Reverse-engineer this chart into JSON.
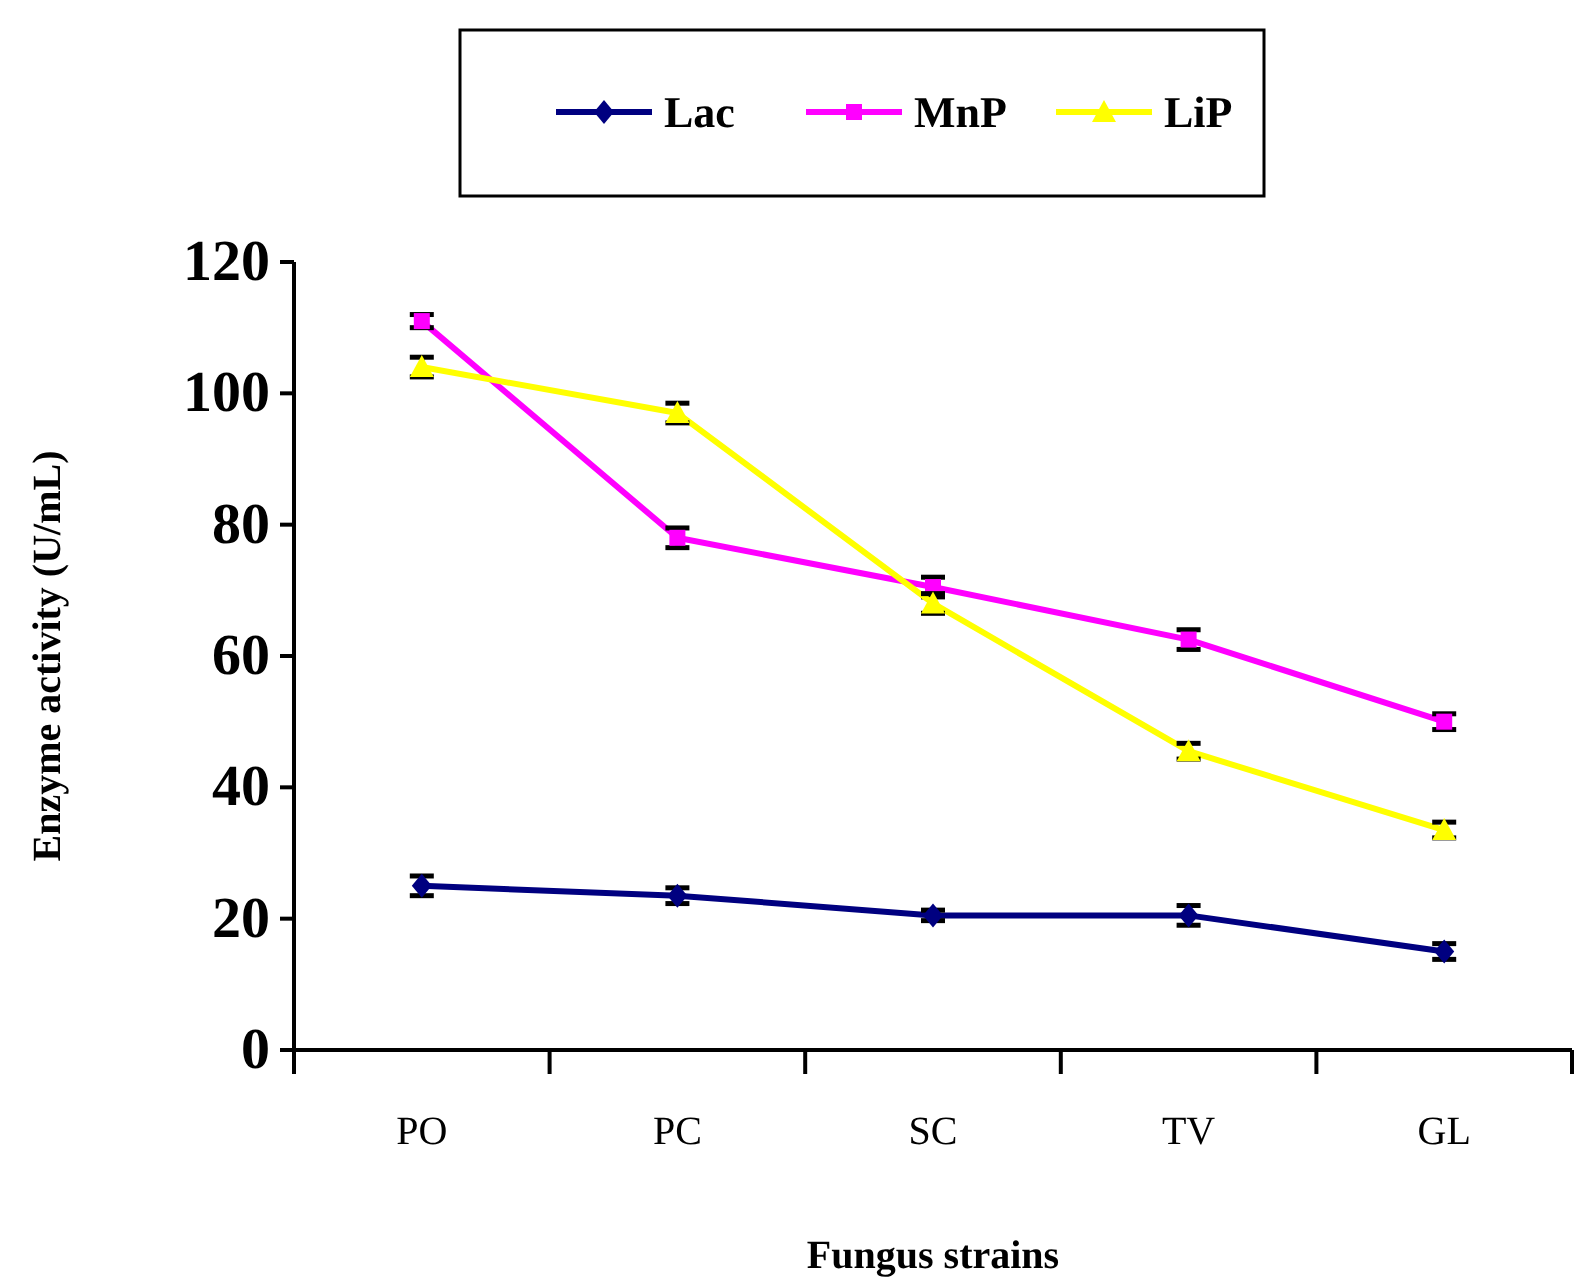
{
  "chart_data": {
    "type": "line",
    "xlabel": "Fungus strains",
    "ylabel": "Enzyme activity (U/mL)",
    "categories": [
      "PO",
      "PC",
      "SC",
      "TV",
      "GL"
    ],
    "ylim": [
      0,
      120
    ],
    "yticks": [
      0,
      20,
      40,
      60,
      80,
      100,
      120
    ],
    "grid": false,
    "legend": "top",
    "series": [
      {
        "name": "Lac",
        "color": "#000080",
        "marker": "diamond",
        "values": [
          25,
          23.5,
          20.5,
          20.5,
          15
        ],
        "errors": [
          1.5,
          1.2,
          0.8,
          1.5,
          1.2
        ]
      },
      {
        "name": "MnP",
        "color": "#ff00ff",
        "marker": "square",
        "values": [
          111,
          78,
          70.5,
          62.5,
          50
        ],
        "errors": [
          1,
          1.5,
          1.5,
          1.5,
          1.2
        ]
      },
      {
        "name": "LiP",
        "color": "#ffff00",
        "marker": "triangle",
        "values": [
          104,
          97,
          68,
          45.5,
          33.5
        ],
        "errors": [
          1.5,
          1.5,
          1.5,
          1.2,
          1.2
        ]
      }
    ]
  }
}
